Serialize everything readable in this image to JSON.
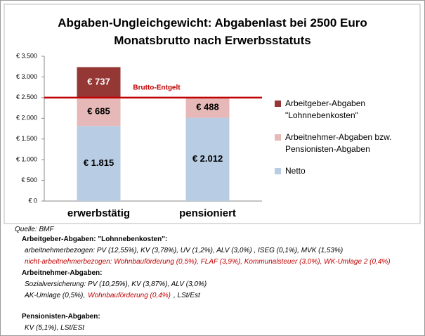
{
  "chart_data": {
    "type": "stacked_bar",
    "title": [
      "Abgaben-Ungleichgewicht: Abgabenlast bei 2500 Euro",
      "Monatsbrutto nach Erwerbsstatuts"
    ],
    "categories": [
      "erwerbstätig",
      "pensioniert"
    ],
    "series": [
      {
        "name": "Netto",
        "color": "#b8cce4",
        "label_color": "#000000",
        "values": [
          1815,
          2012
        ],
        "value_labels": [
          "€ 1.815",
          "€ 2.012"
        ]
      },
      {
        "name": "Arbeitnehmer-Abgaben bzw. Pensionisten-Abgaben",
        "color": "#e6b9b8",
        "label_color": "#000000",
        "values": [
          685,
          488
        ],
        "value_labels": [
          "€ 685",
          "€ 488"
        ]
      },
      {
        "name": "Arbeitgeber-Abgaben \"Lohnnebenkosten\"",
        "color": "#953735",
        "label_color": "#ffffff",
        "values": [
          737,
          null
        ],
        "value_labels": [
          "€ 737",
          null
        ]
      }
    ],
    "ylim": [
      0,
      3500
    ],
    "yticks": [
      {
        "value": 0,
        "label": "€ 0"
      },
      {
        "value": 500,
        "label": "€ 500"
      },
      {
        "value": 1000,
        "label": "€ 1.000"
      },
      {
        "value": 1500,
        "label": "€ 1.500"
      },
      {
        "value": 2000,
        "label": "€ 2.000"
      },
      {
        "value": 2500,
        "label": "€ 2.500"
      },
      {
        "value": 3000,
        "label": "€ 3.000"
      },
      {
        "value": 3500,
        "label": "€ 3.500"
      }
    ],
    "reference_line": {
      "value": 2500,
      "label": "Brutto-Entgelt",
      "color": "#c00000"
    },
    "legend": "right"
  },
  "notes": {
    "source": "Quelle: BMF",
    "groups": [
      {
        "heading": "Arbeitgeber-Abgaben: \"Lohnnebenkosten\":",
        "lines": [
          [
            {
              "text": "arbeitnehmerbezogen: PV (12,55%), KV (3,78%), UV (1,2%), ALV (3,0%) , ISEG (0,1%), MVK (1,53%)",
              "color": "#000000"
            }
          ],
          [
            {
              "text": "nicht-arbeitnehmerbezogen: Wohnbauförderung (0,5%), FLAF (3,9%), Kommunalsteuer (3,0%), WK-Umlage 2 (0,4%)",
              "color": "#c00000"
            }
          ]
        ]
      },
      {
        "heading": "Arbeitnehmer-Abgaben:",
        "lines": [
          [
            {
              "text": "Sozialversicherung: PV (10,25%), KV (3,87%), ALV (3,0%)",
              "color": "#000000"
            }
          ],
          [
            {
              "text": "AK-Umlage (0,5%),",
              "color": "#000000"
            },
            {
              "text": "Wohnbauförderung (0,4%)",
              "color": "#c00000"
            },
            {
              "text": ", LSt/Est",
              "color": "#000000"
            }
          ]
        ]
      },
      {
        "heading": "Pensionisten-Abgaben:",
        "lines": [
          [
            {
              "text": "KV (5,1%), LSt/ESt",
              "color": "#000000"
            }
          ]
        ]
      }
    ]
  }
}
